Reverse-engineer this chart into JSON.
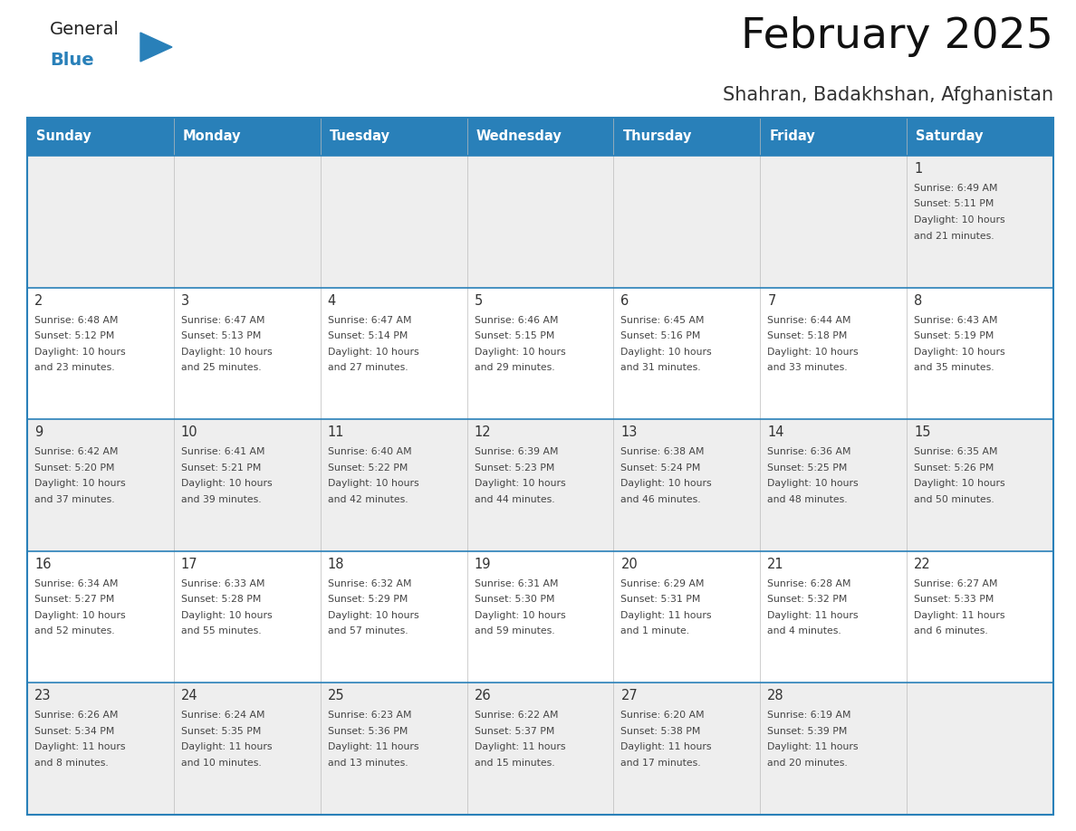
{
  "title": "February 2025",
  "subtitle": "Shahran, Badakhshan, Afghanistan",
  "header_bg": "#2980B9",
  "header_text_color": "#FFFFFF",
  "day_names": [
    "Sunday",
    "Monday",
    "Tuesday",
    "Wednesday",
    "Thursday",
    "Friday",
    "Saturday"
  ],
  "cell_bg_odd": "#EEEEEE",
  "cell_bg_even": "#FFFFFF",
  "separator_color": "#2980B9",
  "date_color": "#333333",
  "text_color": "#444444",
  "title_color": "#111111",
  "subtitle_color": "#333333",
  "logo_general_color": "#222222",
  "logo_blue_color": "#2980B9",
  "weeks": [
    {
      "days": [
        {
          "date": null,
          "info": null
        },
        {
          "date": null,
          "info": null
        },
        {
          "date": null,
          "info": null
        },
        {
          "date": null,
          "info": null
        },
        {
          "date": null,
          "info": null
        },
        {
          "date": null,
          "info": null
        },
        {
          "date": "1",
          "info": "Sunrise: 6:49 AM\nSunset: 5:11 PM\nDaylight: 10 hours\nand 21 minutes."
        }
      ]
    },
    {
      "days": [
        {
          "date": "2",
          "info": "Sunrise: 6:48 AM\nSunset: 5:12 PM\nDaylight: 10 hours\nand 23 minutes."
        },
        {
          "date": "3",
          "info": "Sunrise: 6:47 AM\nSunset: 5:13 PM\nDaylight: 10 hours\nand 25 minutes."
        },
        {
          "date": "4",
          "info": "Sunrise: 6:47 AM\nSunset: 5:14 PM\nDaylight: 10 hours\nand 27 minutes."
        },
        {
          "date": "5",
          "info": "Sunrise: 6:46 AM\nSunset: 5:15 PM\nDaylight: 10 hours\nand 29 minutes."
        },
        {
          "date": "6",
          "info": "Sunrise: 6:45 AM\nSunset: 5:16 PM\nDaylight: 10 hours\nand 31 minutes."
        },
        {
          "date": "7",
          "info": "Sunrise: 6:44 AM\nSunset: 5:18 PM\nDaylight: 10 hours\nand 33 minutes."
        },
        {
          "date": "8",
          "info": "Sunrise: 6:43 AM\nSunset: 5:19 PM\nDaylight: 10 hours\nand 35 minutes."
        }
      ]
    },
    {
      "days": [
        {
          "date": "9",
          "info": "Sunrise: 6:42 AM\nSunset: 5:20 PM\nDaylight: 10 hours\nand 37 minutes."
        },
        {
          "date": "10",
          "info": "Sunrise: 6:41 AM\nSunset: 5:21 PM\nDaylight: 10 hours\nand 39 minutes."
        },
        {
          "date": "11",
          "info": "Sunrise: 6:40 AM\nSunset: 5:22 PM\nDaylight: 10 hours\nand 42 minutes."
        },
        {
          "date": "12",
          "info": "Sunrise: 6:39 AM\nSunset: 5:23 PM\nDaylight: 10 hours\nand 44 minutes."
        },
        {
          "date": "13",
          "info": "Sunrise: 6:38 AM\nSunset: 5:24 PM\nDaylight: 10 hours\nand 46 minutes."
        },
        {
          "date": "14",
          "info": "Sunrise: 6:36 AM\nSunset: 5:25 PM\nDaylight: 10 hours\nand 48 minutes."
        },
        {
          "date": "15",
          "info": "Sunrise: 6:35 AM\nSunset: 5:26 PM\nDaylight: 10 hours\nand 50 minutes."
        }
      ]
    },
    {
      "days": [
        {
          "date": "16",
          "info": "Sunrise: 6:34 AM\nSunset: 5:27 PM\nDaylight: 10 hours\nand 52 minutes."
        },
        {
          "date": "17",
          "info": "Sunrise: 6:33 AM\nSunset: 5:28 PM\nDaylight: 10 hours\nand 55 minutes."
        },
        {
          "date": "18",
          "info": "Sunrise: 6:32 AM\nSunset: 5:29 PM\nDaylight: 10 hours\nand 57 minutes."
        },
        {
          "date": "19",
          "info": "Sunrise: 6:31 AM\nSunset: 5:30 PM\nDaylight: 10 hours\nand 59 minutes."
        },
        {
          "date": "20",
          "info": "Sunrise: 6:29 AM\nSunset: 5:31 PM\nDaylight: 11 hours\nand 1 minute."
        },
        {
          "date": "21",
          "info": "Sunrise: 6:28 AM\nSunset: 5:32 PM\nDaylight: 11 hours\nand 4 minutes."
        },
        {
          "date": "22",
          "info": "Sunrise: 6:27 AM\nSunset: 5:33 PM\nDaylight: 11 hours\nand 6 minutes."
        }
      ]
    },
    {
      "days": [
        {
          "date": "23",
          "info": "Sunrise: 6:26 AM\nSunset: 5:34 PM\nDaylight: 11 hours\nand 8 minutes."
        },
        {
          "date": "24",
          "info": "Sunrise: 6:24 AM\nSunset: 5:35 PM\nDaylight: 11 hours\nand 10 minutes."
        },
        {
          "date": "25",
          "info": "Sunrise: 6:23 AM\nSunset: 5:36 PM\nDaylight: 11 hours\nand 13 minutes."
        },
        {
          "date": "26",
          "info": "Sunrise: 6:22 AM\nSunset: 5:37 PM\nDaylight: 11 hours\nand 15 minutes."
        },
        {
          "date": "27",
          "info": "Sunrise: 6:20 AM\nSunset: 5:38 PM\nDaylight: 11 hours\nand 17 minutes."
        },
        {
          "date": "28",
          "info": "Sunrise: 6:19 AM\nSunset: 5:39 PM\nDaylight: 11 hours\nand 20 minutes."
        },
        {
          "date": null,
          "info": null
        }
      ]
    }
  ]
}
